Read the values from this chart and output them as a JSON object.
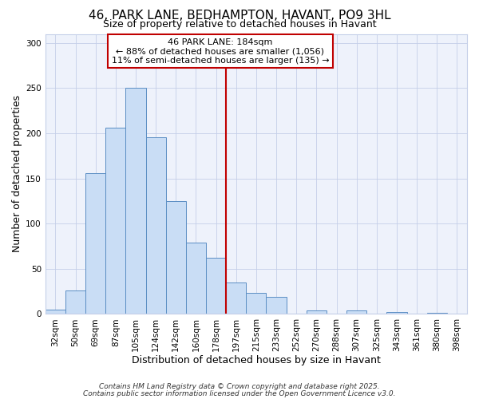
{
  "title": "46, PARK LANE, BEDHAMPTON, HAVANT, PO9 3HL",
  "subtitle": "Size of property relative to detached houses in Havant",
  "xlabel": "Distribution of detached houses by size in Havant",
  "ylabel": "Number of detached properties",
  "bar_labels": [
    "32sqm",
    "50sqm",
    "69sqm",
    "87sqm",
    "105sqm",
    "124sqm",
    "142sqm",
    "160sqm",
    "178sqm",
    "197sqm",
    "215sqm",
    "233sqm",
    "252sqm",
    "270sqm",
    "288sqm",
    "307sqm",
    "325sqm",
    "343sqm",
    "361sqm",
    "380sqm",
    "398sqm"
  ],
  "bar_values": [
    5,
    26,
    156,
    206,
    250,
    196,
    125,
    79,
    62,
    35,
    23,
    19,
    0,
    4,
    0,
    4,
    0,
    2,
    0,
    1,
    0
  ],
  "bar_color": "#c9ddf5",
  "bar_edge_color": "#5b8ec4",
  "vline_x_index": 8,
  "vline_color": "#c00000",
  "annotation_line1": "46 PARK LANE: 184sqm",
  "annotation_line2": "← 88% of detached houses are smaller (1,056)",
  "annotation_line3": "11% of semi-detached houses are larger (135) →",
  "ylim": [
    0,
    310
  ],
  "yticks": [
    0,
    50,
    100,
    150,
    200,
    250,
    300
  ],
  "footer1": "Contains HM Land Registry data © Crown copyright and database right 2025.",
  "footer2": "Contains public sector information licensed under the Open Government Licence v3.0.",
  "background_color": "#ffffff",
  "plot_background": "#eef2fb",
  "grid_color": "#c5cfe8",
  "title_fontsize": 11,
  "subtitle_fontsize": 9,
  "axis_fontsize": 9,
  "tick_fontsize": 7.5,
  "footer_fontsize": 6.5,
  "annotation_fontsize": 8
}
